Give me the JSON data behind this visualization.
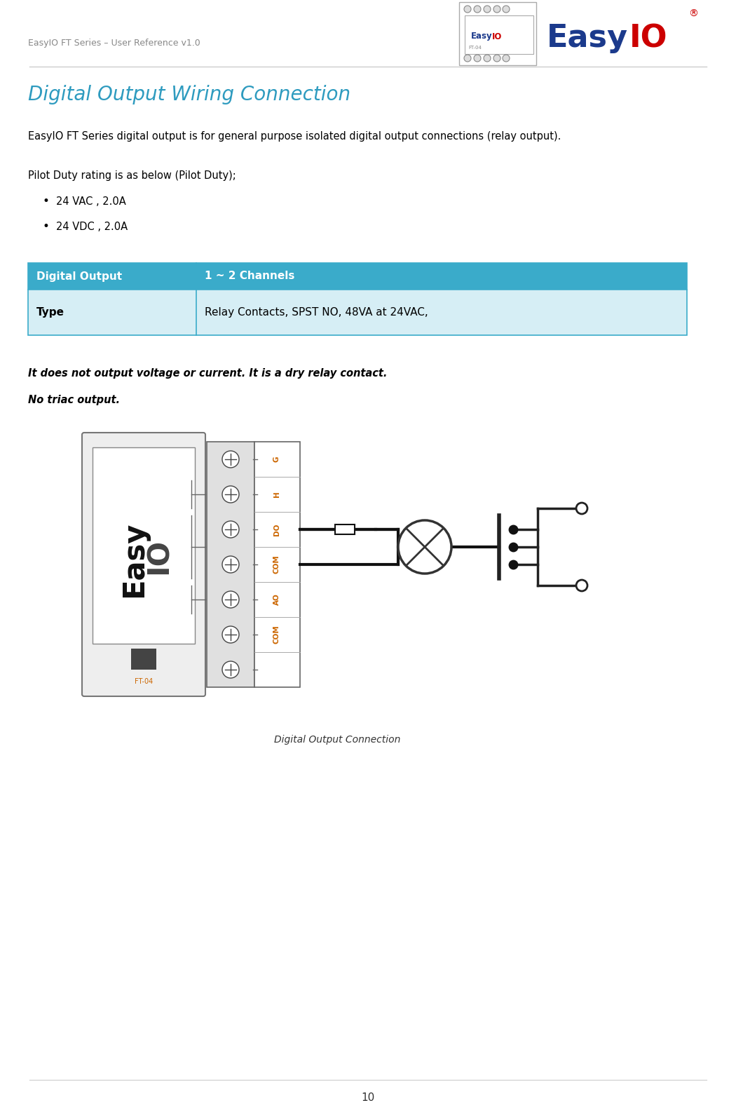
{
  "header_text": "EasyIO FT Series – User Reference v1.0",
  "header_color": "#888888",
  "title": "Digital Output Wiring Connection",
  "title_color": "#2E9BBF",
  "body_text1": "EasyIO FT Series digital output is for general purpose isolated digital output connections (relay output).",
  "body_text2": "Pilot Duty rating is as below (Pilot Duty);",
  "bullet1": "24 VAC , 2.0A",
  "bullet2": "24 VDC , 2.0A",
  "table_header_bg": "#3AABCA",
  "table_header_text_color": "#FFFFFF",
  "table_row_bg": "#D6EEF5",
  "table_border_color": "#3AABCA",
  "table_col1_header": "Digital Output",
  "table_col2_header": "1 ~ 2 Channels",
  "table_col1_row1": "Type",
  "table_col2_row1": "Relay Contacts, SPST NO, 48VA at 24VAC,",
  "italic_text1": "It does not output voltage or current. It is a dry relay contact.",
  "italic_text2": "No triac output.",
  "caption": "Digital Output Connection",
  "page_number": "10",
  "background_color": "#FFFFFF",
  "term_labels": [
    "G",
    "H",
    "DO",
    "COM",
    "AO",
    "COM",
    ""
  ],
  "easyio_blue": "#1B3A8C",
  "easyio_red": "#CC0000",
  "diagram_gray": "#AAAAAA",
  "wire_color": "#111111",
  "term_label_color": "#CC6600"
}
